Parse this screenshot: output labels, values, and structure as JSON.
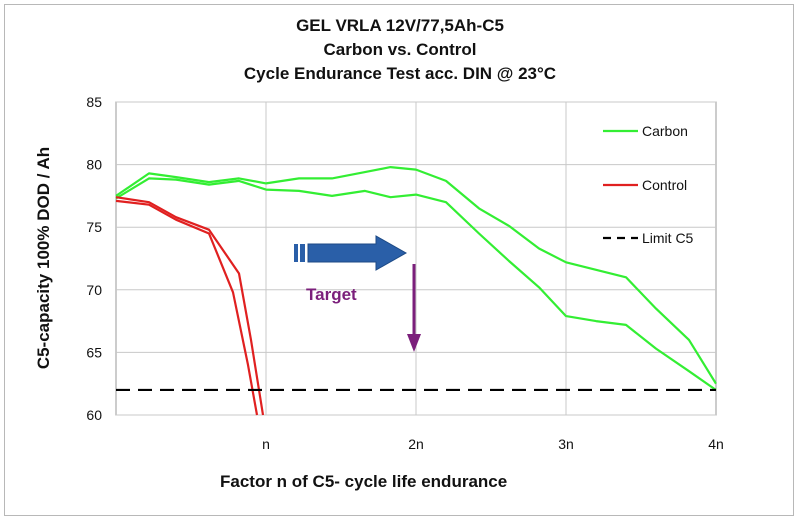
{
  "chart_data": {
    "type": "line",
    "title_lines": [
      "GEL VRLA  12V/77,5Ah-C5",
      "Carbon vs. Control",
      "Cycle Endurance Test acc. DIN @ 23°C"
    ],
    "ylabel": "C5-capacity  100% DOD / Ah",
    "xlabel": "Factor n of C5- cycle life endurance",
    "ylim": [
      60,
      85
    ],
    "xlim": [
      0,
      4
    ],
    "yticks": [
      "60",
      "65",
      "70",
      "75",
      "80",
      "85"
    ],
    "xticks": [
      {
        "value": 1,
        "label": "n"
      },
      {
        "value": 2,
        "label": "2n"
      },
      {
        "value": 3,
        "label": "3n"
      },
      {
        "value": 4,
        "label": "4n"
      }
    ],
    "grid": true,
    "legend_position": "right",
    "colors": {
      "carbon": "#33ee33",
      "control": "#e02020",
      "limit": "#000000",
      "arrow": "#2a5fa8",
      "target": "#7b1f7b"
    },
    "series": [
      {
        "name": "Carbon",
        "color": "#33ee33",
        "x": [
          0,
          0.22,
          0.4,
          0.62,
          0.82,
          1.0,
          1.22,
          1.44,
          1.66,
          1.83,
          2.0,
          2.2,
          2.42,
          2.62,
          2.82,
          3.0,
          3.2,
          3.4,
          3.6,
          3.82,
          4.0
        ],
        "y": [
          77.5,
          79.3,
          79.0,
          78.6,
          78.9,
          78.5,
          78.9,
          78.9,
          79.4,
          79.8,
          79.6,
          78.7,
          76.5,
          75.1,
          73.3,
          72.2,
          71.6,
          71.0,
          68.5,
          66.0,
          62.5
        ]
      },
      {
        "name": "Carbon",
        "color": "#33ee33",
        "x": [
          0,
          0.22,
          0.4,
          0.62,
          0.82,
          1.0,
          1.22,
          1.44,
          1.66,
          1.83,
          2.0,
          2.2,
          2.42,
          2.62,
          2.82,
          3.0,
          3.2,
          3.4,
          3.6,
          3.82,
          4.0
        ],
        "y": [
          77.3,
          78.9,
          78.8,
          78.4,
          78.7,
          78.0,
          77.9,
          77.5,
          77.9,
          77.4,
          77.6,
          77.0,
          74.5,
          72.3,
          70.2,
          67.9,
          67.5,
          67.2,
          65.3,
          63.5,
          62.0
        ]
      },
      {
        "name": "Control",
        "color": "#e02020",
        "x": [
          0,
          0.22,
          0.4,
          0.62,
          0.82,
          0.9,
          0.98
        ],
        "y": [
          77.4,
          77.0,
          75.8,
          74.8,
          71.3,
          66.0,
          60.0
        ]
      },
      {
        "name": "Control",
        "color": "#e02020",
        "x": [
          0,
          0.22,
          0.4,
          0.62,
          0.78,
          0.88,
          0.94
        ],
        "y": [
          77.1,
          76.8,
          75.6,
          74.5,
          69.8,
          64.0,
          60.0
        ]
      }
    ],
    "limit_line": {
      "name": "Limit C5",
      "value": 62,
      "style": "dashed"
    },
    "legend": [
      {
        "label": "Carbon",
        "color": "#33ee33",
        "style": "solid"
      },
      {
        "label": "Control",
        "color": "#e02020",
        "style": "solid"
      },
      {
        "label": "Limit C5",
        "color": "#000000",
        "style": "dashed"
      }
    ],
    "annotations": {
      "target_label": "Target"
    }
  }
}
